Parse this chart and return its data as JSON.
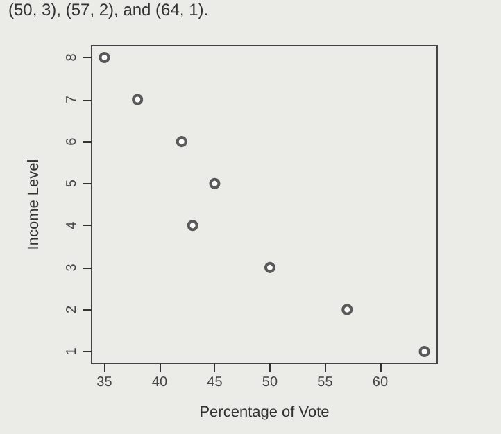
{
  "chart_data": {
    "type": "scatter",
    "xlabel": "Percentage of Vote",
    "ylabel": "Income Level",
    "annotations": [
      "(50, 3), (57, 2), and (64, 1)."
    ],
    "x": [
      35,
      38,
      42,
      45,
      43,
      50,
      57,
      64
    ],
    "series": [
      {
        "color": "#333333",
        "values": [
          8,
          7,
          6,
          5,
          4,
          3,
          2,
          1
        ]
      }
    ],
    "xlim": [
      33.84,
      65.16
    ],
    "xticks": [
      35,
      40,
      45,
      50,
      55,
      60
    ],
    "ylim": [
      0.72,
      8.28
    ],
    "yticks": [
      1,
      2,
      3,
      4,
      5,
      6,
      7,
      8
    ],
    "marker": "circle"
  }
}
